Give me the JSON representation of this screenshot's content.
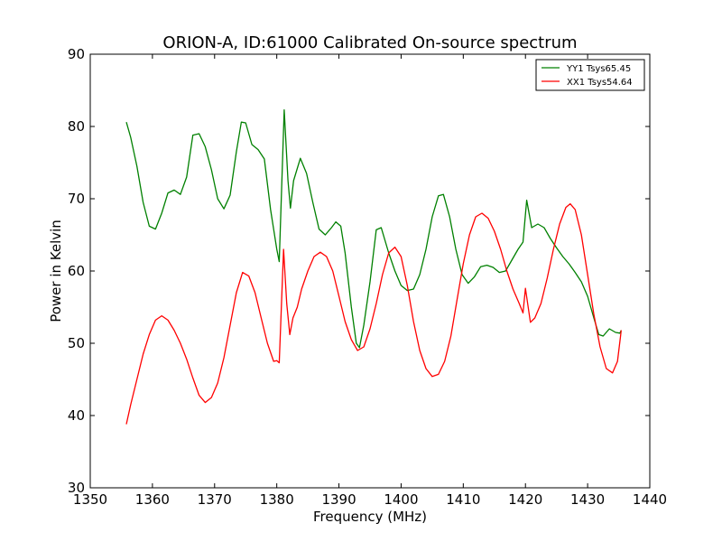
{
  "chart_data": {
    "type": "line",
    "title": "ORION-A, ID:61000 Calibrated On-source spectrum",
    "xlabel": "Frequency (MHz)",
    "ylabel": "Power in Kelvin",
    "xlim": [
      1350,
      1440
    ],
    "ylim": [
      30,
      90
    ],
    "xticks": [
      "1350",
      "1360",
      "1370",
      "1380",
      "1390",
      "1400",
      "1410",
      "1420",
      "1430",
      "1440"
    ],
    "yticks": [
      "30",
      "40",
      "50",
      "60",
      "70",
      "80",
      "90"
    ],
    "grid": false,
    "legend_placement": "top-right",
    "series": [
      {
        "name": "YY1 Tsys65.45",
        "color": "#008000",
        "points": [
          [
            1355.8,
            80.6
          ],
          [
            1356.5,
            78.5
          ],
          [
            1357.5,
            74.5
          ],
          [
            1358.5,
            69.5
          ],
          [
            1359.5,
            66.2
          ],
          [
            1360.5,
            65.8
          ],
          [
            1361.5,
            68.0
          ],
          [
            1362.5,
            70.8
          ],
          [
            1363.5,
            71.2
          ],
          [
            1364.5,
            70.6
          ],
          [
            1365.5,
            73.0
          ],
          [
            1366.5,
            78.8
          ],
          [
            1367.5,
            79.0
          ],
          [
            1368.5,
            77.2
          ],
          [
            1369.5,
            74.0
          ],
          [
            1370.5,
            70.0
          ],
          [
            1371.5,
            68.6
          ],
          [
            1372.5,
            70.5
          ],
          [
            1373.5,
            76.5
          ],
          [
            1374.3,
            80.6
          ],
          [
            1375.0,
            80.5
          ],
          [
            1376.0,
            77.5
          ],
          [
            1377.0,
            76.8
          ],
          [
            1378.0,
            75.5
          ],
          [
            1379.0,
            68.5
          ],
          [
            1380.0,
            63.0
          ],
          [
            1380.4,
            61.3
          ],
          [
            1381.2,
            82.3
          ],
          [
            1381.8,
            72.5
          ],
          [
            1382.2,
            68.7
          ],
          [
            1382.7,
            72.5
          ],
          [
            1383.8,
            75.6
          ],
          [
            1384.8,
            73.5
          ],
          [
            1385.8,
            69.5
          ],
          [
            1386.8,
            65.8
          ],
          [
            1387.8,
            65.0
          ],
          [
            1388.8,
            66.0
          ],
          [
            1389.5,
            66.8
          ],
          [
            1390.3,
            66.2
          ],
          [
            1391.0,
            62.5
          ],
          [
            1392.0,
            55.0
          ],
          [
            1392.8,
            50.0
          ],
          [
            1393.3,
            49.4
          ],
          [
            1394.0,
            52.5
          ],
          [
            1395.0,
            58.5
          ],
          [
            1396.0,
            65.7
          ],
          [
            1396.8,
            66.0
          ],
          [
            1398.0,
            62.5
          ],
          [
            1399.0,
            60.0
          ],
          [
            1400.0,
            58.0
          ],
          [
            1401.0,
            57.3
          ],
          [
            1402.0,
            57.5
          ],
          [
            1403.0,
            59.5
          ],
          [
            1404.0,
            63.0
          ],
          [
            1405.0,
            67.5
          ],
          [
            1406.0,
            70.4
          ],
          [
            1406.8,
            70.6
          ],
          [
            1407.8,
            67.5
          ],
          [
            1408.8,
            63.0
          ],
          [
            1409.8,
            59.5
          ],
          [
            1410.8,
            58.3
          ],
          [
            1411.8,
            59.2
          ],
          [
            1412.8,
            60.6
          ],
          [
            1413.8,
            60.8
          ],
          [
            1414.8,
            60.5
          ],
          [
            1415.8,
            59.8
          ],
          [
            1416.8,
            60.0
          ],
          [
            1417.8,
            61.5
          ],
          [
            1418.8,
            63.0
          ],
          [
            1419.6,
            64.0
          ],
          [
            1420.2,
            69.8
          ],
          [
            1421.0,
            66.0
          ],
          [
            1422.0,
            66.5
          ],
          [
            1423.0,
            66.0
          ],
          [
            1424.0,
            64.5
          ],
          [
            1425.0,
            63.2
          ],
          [
            1426.0,
            62.0
          ],
          [
            1427.0,
            61.0
          ],
          [
            1428.0,
            59.8
          ],
          [
            1429.0,
            58.5
          ],
          [
            1430.0,
            56.5
          ],
          [
            1431.0,
            53.5
          ],
          [
            1431.8,
            51.2
          ],
          [
            1432.5,
            51.0
          ],
          [
            1433.5,
            52.0
          ],
          [
            1434.5,
            51.5
          ],
          [
            1435.2,
            51.4
          ],
          [
            1435.4,
            51.8
          ]
        ]
      },
      {
        "name": "XX1 Tsys54.64",
        "color": "#ff0000",
        "points": [
          [
            1355.8,
            38.8
          ],
          [
            1356.5,
            41.5
          ],
          [
            1357.5,
            45.0
          ],
          [
            1358.5,
            48.5
          ],
          [
            1359.5,
            51.2
          ],
          [
            1360.5,
            53.2
          ],
          [
            1361.5,
            53.8
          ],
          [
            1362.5,
            53.2
          ],
          [
            1363.5,
            51.8
          ],
          [
            1364.5,
            50.0
          ],
          [
            1365.5,
            47.8
          ],
          [
            1366.5,
            45.2
          ],
          [
            1367.5,
            42.8
          ],
          [
            1368.5,
            41.8
          ],
          [
            1369.5,
            42.5
          ],
          [
            1370.5,
            44.5
          ],
          [
            1371.5,
            48.0
          ],
          [
            1372.5,
            52.5
          ],
          [
            1373.5,
            57.0
          ],
          [
            1374.5,
            59.8
          ],
          [
            1375.5,
            59.3
          ],
          [
            1376.5,
            57.0
          ],
          [
            1377.5,
            53.5
          ],
          [
            1378.5,
            50.0
          ],
          [
            1379.5,
            47.5
          ],
          [
            1380.0,
            47.6
          ],
          [
            1380.4,
            47.3
          ],
          [
            1381.1,
            63.0
          ],
          [
            1381.6,
            55.5
          ],
          [
            1382.1,
            51.2
          ],
          [
            1382.6,
            53.5
          ],
          [
            1383.3,
            55.0
          ],
          [
            1384.0,
            57.5
          ],
          [
            1385.0,
            60.0
          ],
          [
            1386.0,
            62.0
          ],
          [
            1387.0,
            62.6
          ],
          [
            1388.0,
            62.0
          ],
          [
            1389.0,
            60.0
          ],
          [
            1390.0,
            56.5
          ],
          [
            1391.0,
            53.0
          ],
          [
            1392.0,
            50.5
          ],
          [
            1393.0,
            49.0
          ],
          [
            1394.0,
            49.5
          ],
          [
            1395.0,
            52.0
          ],
          [
            1396.0,
            55.5
          ],
          [
            1397.0,
            59.5
          ],
          [
            1398.0,
            62.5
          ],
          [
            1399.0,
            63.3
          ],
          [
            1400.0,
            62.0
          ],
          [
            1401.0,
            58.0
          ],
          [
            1402.0,
            53.0
          ],
          [
            1403.0,
            49.0
          ],
          [
            1404.0,
            46.5
          ],
          [
            1405.0,
            45.4
          ],
          [
            1406.0,
            45.7
          ],
          [
            1407.0,
            47.5
          ],
          [
            1408.0,
            51.0
          ],
          [
            1409.0,
            56.0
          ],
          [
            1410.0,
            61.0
          ],
          [
            1411.0,
            65.0
          ],
          [
            1412.0,
            67.5
          ],
          [
            1413.0,
            68.0
          ],
          [
            1414.0,
            67.3
          ],
          [
            1415.0,
            65.5
          ],
          [
            1416.0,
            63.0
          ],
          [
            1417.0,
            60.0
          ],
          [
            1418.0,
            57.5
          ],
          [
            1419.0,
            55.5
          ],
          [
            1419.6,
            54.2
          ],
          [
            1420.0,
            57.6
          ],
          [
            1420.8,
            52.9
          ],
          [
            1421.5,
            53.5
          ],
          [
            1422.5,
            55.5
          ],
          [
            1423.5,
            59.0
          ],
          [
            1424.5,
            63.0
          ],
          [
            1425.5,
            66.5
          ],
          [
            1426.5,
            68.8
          ],
          [
            1427.2,
            69.3
          ],
          [
            1428.0,
            68.5
          ],
          [
            1429.0,
            65.0
          ],
          [
            1430.0,
            59.5
          ],
          [
            1431.0,
            54.0
          ],
          [
            1432.0,
            49.5
          ],
          [
            1433.0,
            46.5
          ],
          [
            1434.0,
            45.9
          ],
          [
            1434.8,
            47.5
          ],
          [
            1435.3,
            51.0
          ],
          [
            1435.4,
            51.8
          ]
        ]
      }
    ]
  }
}
